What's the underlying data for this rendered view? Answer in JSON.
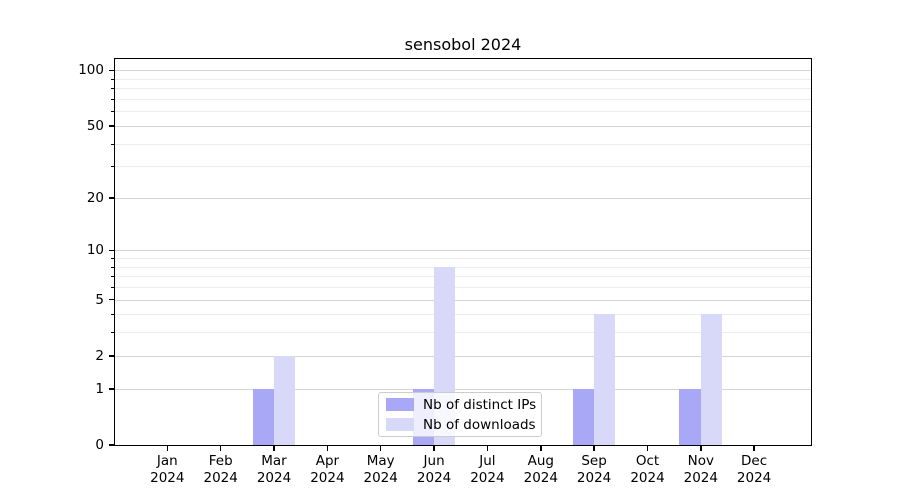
{
  "chart_data": {
    "type": "bar",
    "title": "sensobol 2024",
    "categories": [
      "Jan",
      "Feb",
      "Mar",
      "Apr",
      "May",
      "Jun",
      "Jul",
      "Aug",
      "Sep",
      "Oct",
      "Nov",
      "Dec"
    ],
    "x_year_label": "2024",
    "series": [
      {
        "name": "Nb of distinct IPs",
        "color": "#a8a8f6",
        "values": [
          0,
          0,
          1,
          0,
          0,
          1,
          0,
          0,
          1,
          0,
          1,
          0
        ]
      },
      {
        "name": "Nb of downloads",
        "color": "#d8d8f9",
        "values": [
          0,
          0,
          2,
          0,
          0,
          8,
          0,
          0,
          4,
          0,
          4,
          0
        ]
      }
    ],
    "yscale": "log1p",
    "ylim": [
      0,
      115
    ],
    "y_major_ticks": [
      0,
      1,
      2,
      5,
      10,
      20,
      50,
      100
    ],
    "y_minor_ticks": [
      3,
      4,
      6,
      7,
      8,
      9,
      30,
      40,
      60,
      70,
      80,
      90
    ],
    "grid": "horizontal-gridlines",
    "legend_position": "inside-lower-center",
    "colors": {
      "axis": "#000000",
      "grid_major": "#d4d4d4",
      "grid_minor": "#ececec"
    }
  }
}
